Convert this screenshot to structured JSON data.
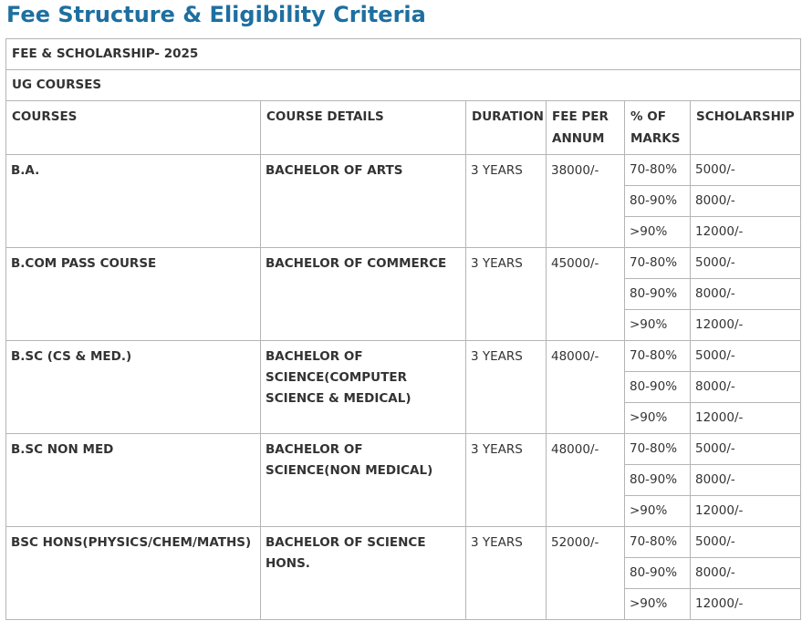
{
  "page": {
    "title": "Fee Structure & Eligibility Criteria"
  },
  "table": {
    "caption_row": "FEE & SCHOLARSHIP- 2025",
    "section_row": "UG COURSES",
    "headers": {
      "courses": "COURSES",
      "course_details": "COURSE DETAILS",
      "duration": "DURATION",
      "fee": "FEE PER ANNUM",
      "marks": "% OF MARKS",
      "scholarship": "SCHOLARSHIP"
    },
    "rows": [
      {
        "course": "B.A.",
        "detail": "BACHELOR OF ARTS",
        "duration": "3 YEARS",
        "fee": "38000/-",
        "tiers": [
          {
            "marks": "70-80%",
            "scholarship": "5000/-"
          },
          {
            "marks": "80-90%",
            "scholarship": "8000/-"
          },
          {
            "marks": ">90%",
            "scholarship": "12000/-"
          }
        ]
      },
      {
        "course": "B.COM PASS COURSE",
        "detail": "BACHELOR OF COMMERCE",
        "duration": "3 YEARS",
        "fee": "45000/-",
        "tiers": [
          {
            "marks": "70-80%",
            "scholarship": "5000/-"
          },
          {
            "marks": "80-90%",
            "scholarship": "8000/-"
          },
          {
            "marks": ">90%",
            "scholarship": "12000/-"
          }
        ]
      },
      {
        "course": "B.SC (CS & MED.)",
        "detail": "BACHELOR OF SCIENCE(COMPUTER SCIENCE & MEDICAL)",
        "duration": "3 YEARS",
        "fee": "48000/-",
        "tiers": [
          {
            "marks": "70-80%",
            "scholarship": "5000/-"
          },
          {
            "marks": "80-90%",
            "scholarship": "8000/-"
          },
          {
            "marks": ">90%",
            "scholarship": "12000/-"
          }
        ]
      },
      {
        "course": "B.SC NON MED",
        "detail": "BACHELOR OF SCIENCE(NON MEDICAL)",
        "duration": "3 YEARS",
        "fee": "48000/-",
        "tiers": [
          {
            "marks": "70-80%",
            "scholarship": "5000/-"
          },
          {
            "marks": "80-90%",
            "scholarship": "8000/-"
          },
          {
            "marks": ">90%",
            "scholarship": "12000/-"
          }
        ]
      },
      {
        "course": "BSC HONS(PHYSICS/CHEM/MATHS)",
        "detail": "BACHELOR OF SCIENCE HONS.",
        "duration": "3 YEARS",
        "fee": "52000/-",
        "tiers": [
          {
            "marks": "70-80%",
            "scholarship": "5000/-"
          },
          {
            "marks": "80-90%",
            "scholarship": "8000/-"
          },
          {
            "marks": ">90%",
            "scholarship": "12000/-"
          }
        ]
      }
    ]
  },
  "colors": {
    "title": "#1d6fa0",
    "text": "#333333",
    "border": "#b5b5b5"
  }
}
